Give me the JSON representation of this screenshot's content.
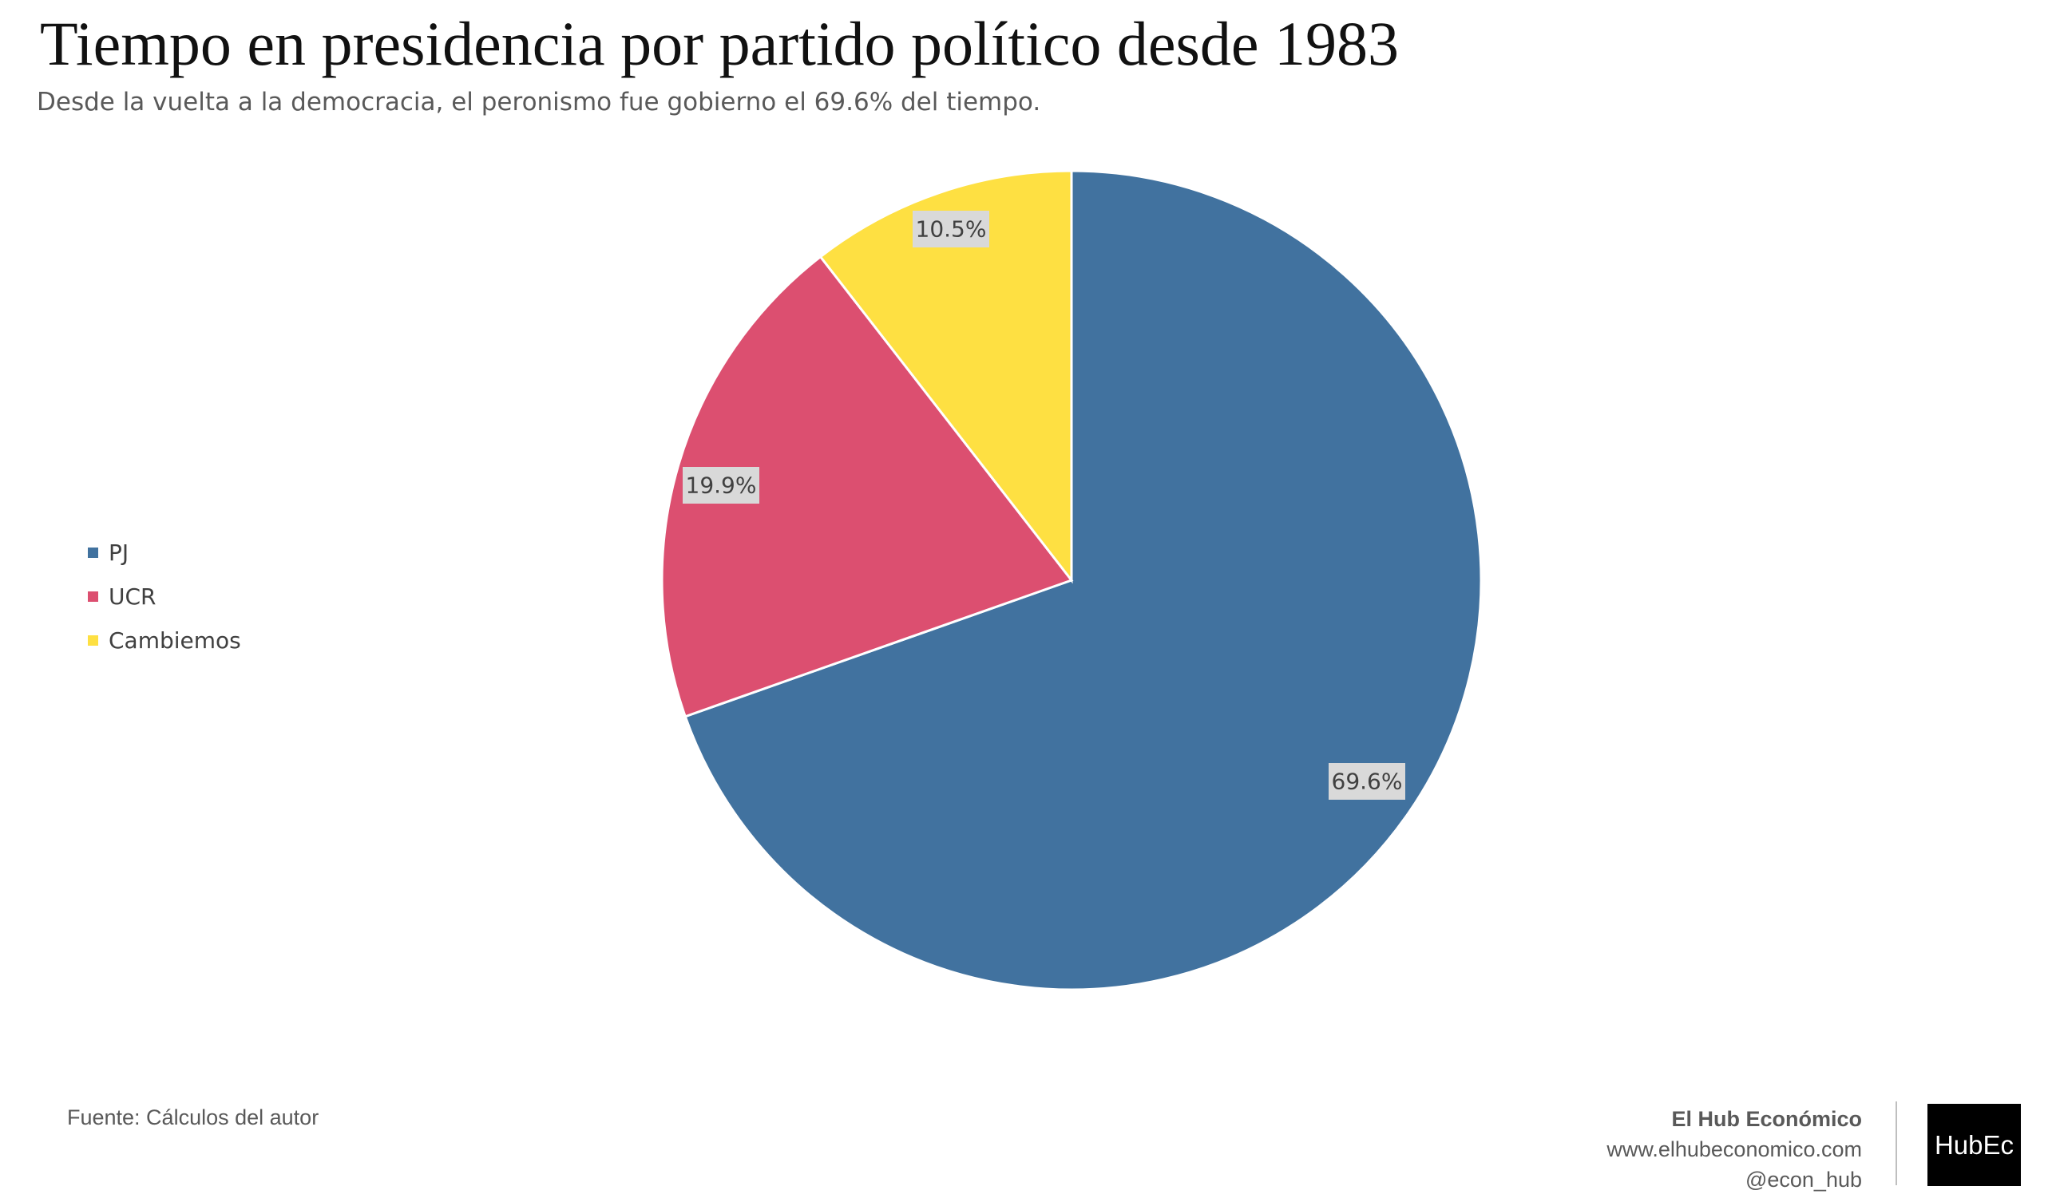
{
  "title": "Tiempo en presidencia por partido político desde 1983",
  "subtitle": "Desde la vuelta a la democracia, el peronismo fue gobierno el 69.6% del tiempo.",
  "chart_data": {
    "type": "pie",
    "title": "Tiempo en presidencia por partido político desde 1983",
    "subtitle": "Desde la vuelta a la democracia, el peronismo fue gobierno el 69.6% del tiempo.",
    "categories": [
      "PJ",
      "UCR",
      "Cambiemos"
    ],
    "values": [
      69.6,
      19.9,
      10.5
    ],
    "data_labels": [
      "69.6%",
      "19.9%",
      "10.5%"
    ],
    "colors": [
      "#41729F",
      "#DC4F70",
      "#FEE042"
    ],
    "start_angle": "12 o'clock",
    "direction": "clockwise",
    "legend_position": "left"
  },
  "legend": [
    {
      "label": "PJ",
      "color": "#41729F"
    },
    {
      "label": "UCR",
      "color": "#DC4F70"
    },
    {
      "label": "Cambiemos",
      "color": "#FEE042"
    }
  ],
  "footer": {
    "source": "Fuente: Cálculos del autor",
    "brand_name": "El Hub Económico",
    "brand_url": "www.elhubeconomico.com",
    "brand_handle": "@econ_hub",
    "logo_text": "HubEc"
  }
}
